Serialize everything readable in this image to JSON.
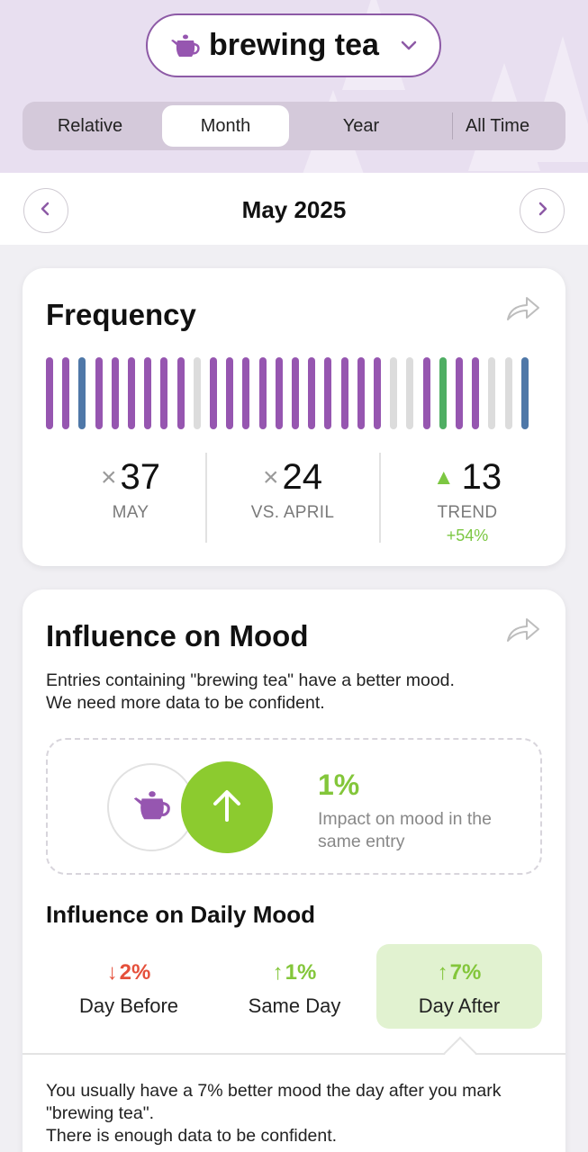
{
  "header": {
    "selected_tag": "brewing tea",
    "tag_icon": "teapot-icon",
    "dropdown_icon": "chevron-down-icon"
  },
  "period_tabs": [
    {
      "label": "Relative",
      "active": false
    },
    {
      "label": "Month",
      "active": true
    },
    {
      "label": "Year",
      "active": false
    },
    {
      "label": "All Time",
      "active": false
    }
  ],
  "month_nav": {
    "title": "May 2025",
    "prev_icon": "chevron-left-icon",
    "next_icon": "chevron-right-icon"
  },
  "frequency": {
    "title": "Frequency",
    "share_icon": "share-icon",
    "day_bars": [
      "purple",
      "purple",
      "blue",
      "purple",
      "purple",
      "purple",
      "purple",
      "purple",
      "purple",
      "gray",
      "purple",
      "purple",
      "purple",
      "purple",
      "purple",
      "purple",
      "purple",
      "purple",
      "purple",
      "purple",
      "purple",
      "gray",
      "gray",
      "purple",
      "green",
      "purple",
      "purple",
      "gray",
      "gray",
      "blue"
    ],
    "stats": [
      {
        "mark": "×",
        "value": "37",
        "label": "MAY"
      },
      {
        "mark": "×",
        "value": "24",
        "label": "VS. APRIL"
      },
      {
        "mark": "▲",
        "value": "13",
        "label": "TREND",
        "sub": "+54%"
      }
    ]
  },
  "influence": {
    "title": "Influence on Mood",
    "share_icon": "share-icon",
    "description": "Entries containing \"brewing tea\" have a better mood.\nWe need more data to be confident.",
    "impact": {
      "percent": "1%",
      "text": "Impact on mood in the same entry",
      "tag_icon": "teapot-icon",
      "direction_icon": "arrow-up-icon"
    },
    "daily_title": "Influence on Daily Mood",
    "daily": [
      {
        "arrow": "↓",
        "percent": "2%",
        "label": "Day Before",
        "direction": "down",
        "active": false
      },
      {
        "arrow": "↑",
        "percent": "1%",
        "label": "Same Day",
        "direction": "up",
        "active": false
      },
      {
        "arrow": "↑",
        "percent": "7%",
        "label": "Day After",
        "direction": "up",
        "active": true
      }
    ],
    "footer": "You usually have a 7% better mood the day after you mark \"brewing tea\".\nThere is enough data to be confident."
  },
  "colors": {
    "purple": "#9656b0",
    "blue": "#4f78a8",
    "gray": "#dcdcdc",
    "green": "#4fae63",
    "accent_green": "#8ccb2f",
    "down_red": "#e5503b",
    "header_bg": "#e8dff0"
  }
}
